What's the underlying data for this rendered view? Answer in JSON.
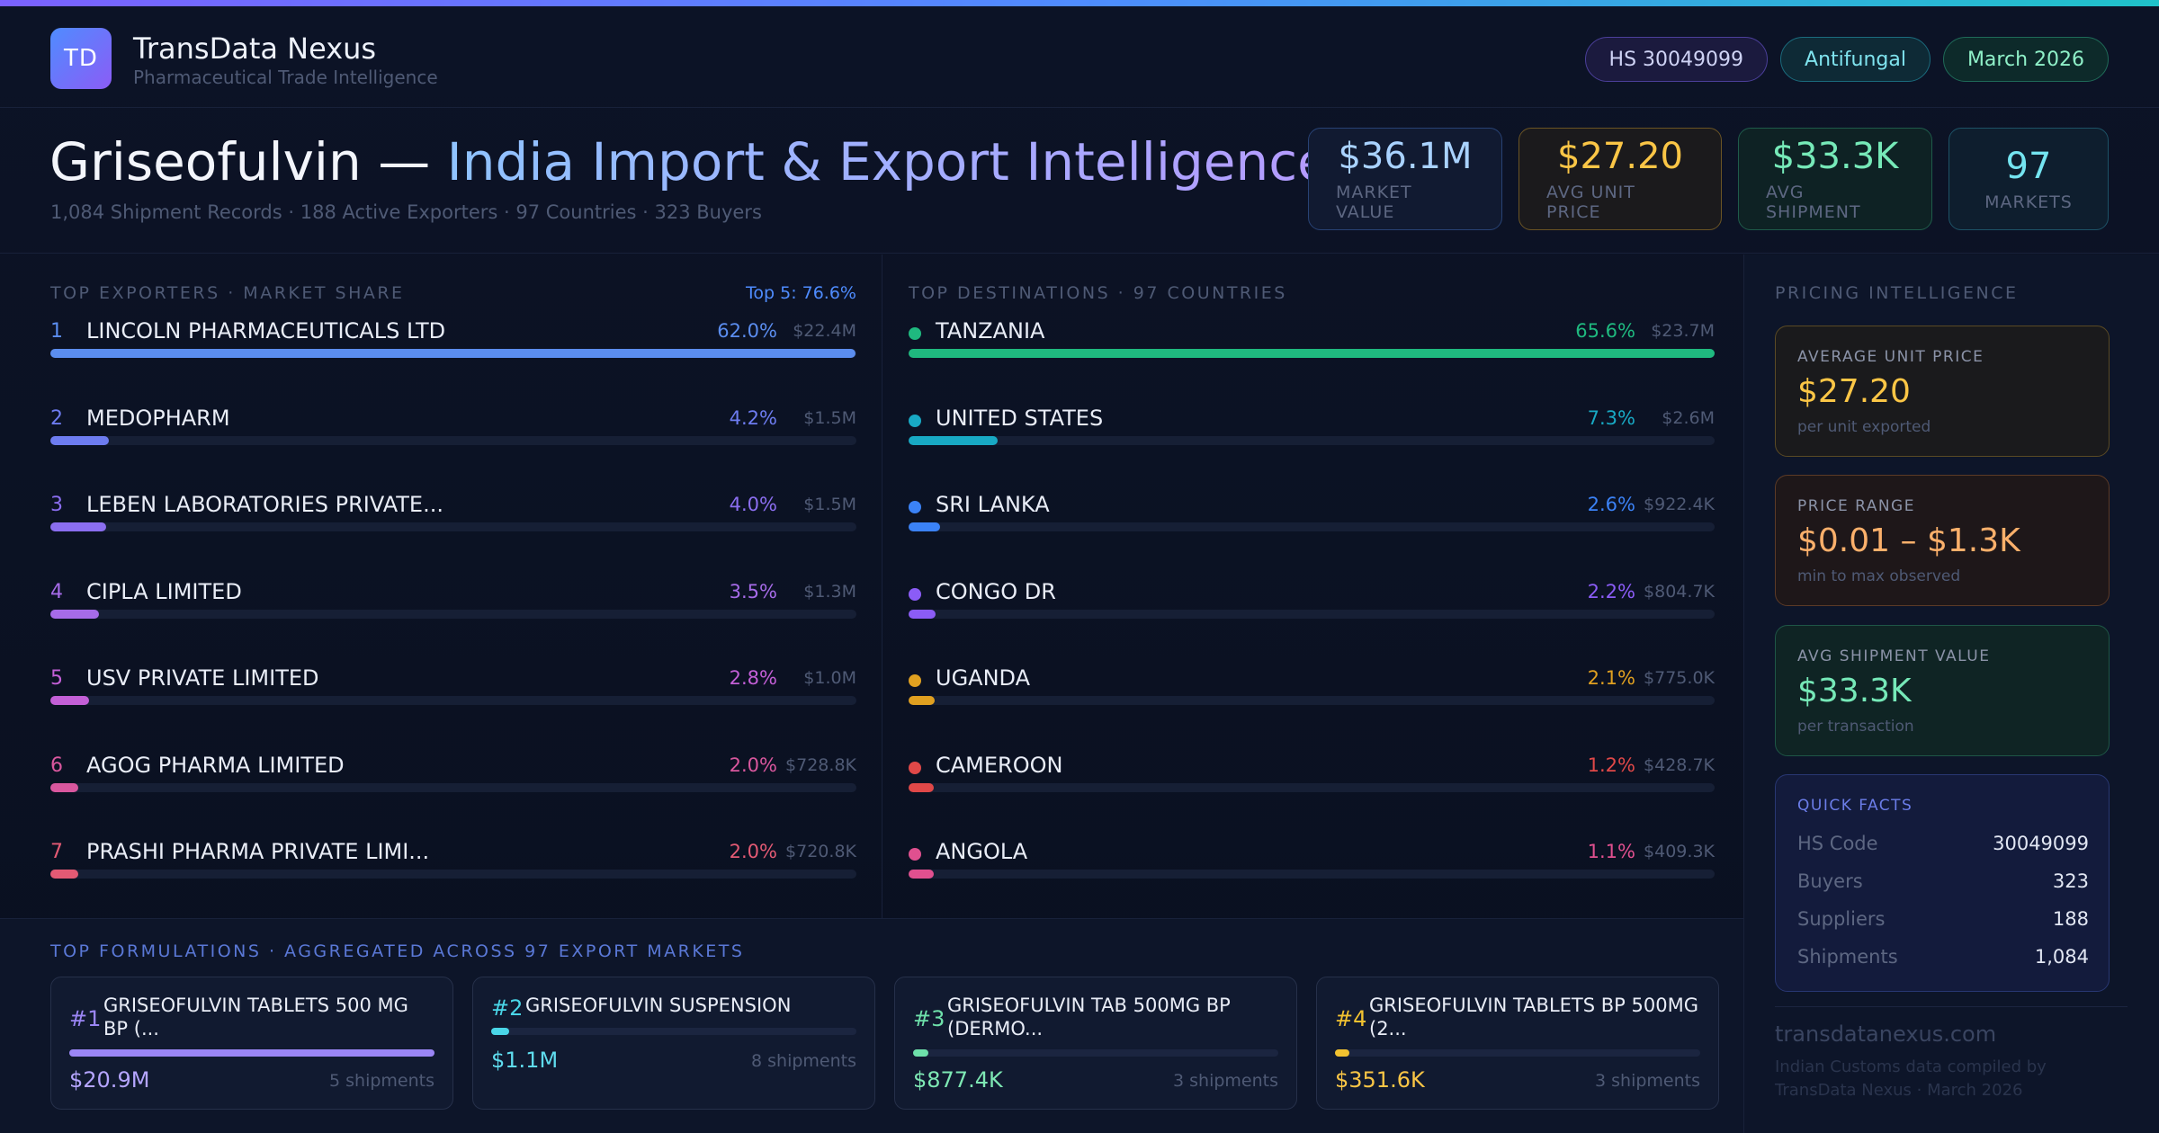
{
  "brand": {
    "logo": "TD",
    "name": "TransData Nexus",
    "subtitle": "Pharmaceutical Trade Intelligence"
  },
  "chips": {
    "hs": "HS 30049099",
    "category": "Antifungal",
    "date": "March 2026"
  },
  "hero": {
    "title_product": "Griseofulvin —",
    "title_rest": "India Import & Export Intelligence",
    "subtitle": "1,084 Shipment Records · 188 Active Exporters · 97 Countries · 323 Buyers"
  },
  "stats": [
    {
      "value": "$36.1M",
      "label": "MARKET VALUE"
    },
    {
      "value": "$27.20",
      "label": "AVG UNIT PRICE"
    },
    {
      "value": "$33.3K",
      "label": "AVG SHIPMENT"
    },
    {
      "value": "97",
      "label": "MARKETS"
    }
  ],
  "exporters": {
    "title": "TOP EXPORTERS · MARKET SHARE",
    "top5": "Top 5: 76.6%",
    "items": [
      {
        "rank": "1",
        "name": "LINCOLN PHARMACEUTICALS LTD",
        "pct": "62.0%",
        "amount": "$22.4M",
        "share": 62.0,
        "color": "#5b8def"
      },
      {
        "rank": "2",
        "name": "MEDOPHARM",
        "pct": "4.2%",
        "amount": "$1.5M",
        "share": 4.2,
        "color": "#6d7cf0"
      },
      {
        "rank": "3",
        "name": "LEBEN LABORATORIES PRIVATE...",
        "pct": "4.0%",
        "amount": "$1.5M",
        "share": 4.0,
        "color": "#8b6ef0"
      },
      {
        "rank": "4",
        "name": "CIPLA LIMITED",
        "pct": "3.5%",
        "amount": "$1.3M",
        "share": 3.5,
        "color": "#a66be8"
      },
      {
        "rank": "5",
        "name": "USV PRIVATE LIMITED",
        "pct": "2.8%",
        "amount": "$1.0M",
        "share": 2.8,
        "color": "#c35fd6"
      },
      {
        "rank": "6",
        "name": "AGOG PHARMA LIMITED",
        "pct": "2.0%",
        "amount": "$728.8K",
        "share": 2.0,
        "color": "#d9579e"
      },
      {
        "rank": "7",
        "name": "PRASHI PHARMA PRIVATE LIMI...",
        "pct": "2.0%",
        "amount": "$720.8K",
        "share": 2.0,
        "color": "#e35a74"
      }
    ]
  },
  "destinations": {
    "title": "TOP DESTINATIONS · 97 COUNTRIES",
    "items": [
      {
        "name": "TANZANIA",
        "pct": "65.6%",
        "amount": "$23.7M",
        "share": 65.6,
        "color": "#1fb97f"
      },
      {
        "name": "UNITED STATES",
        "pct": "7.3%",
        "amount": "$2.6M",
        "share": 7.3,
        "color": "#18a9c4"
      },
      {
        "name": "SRI LANKA",
        "pct": "2.6%",
        "amount": "$922.4K",
        "share": 2.6,
        "color": "#3b82f6"
      },
      {
        "name": "CONGO DR",
        "pct": "2.2%",
        "amount": "$804.7K",
        "share": 2.2,
        "color": "#8b5cf6"
      },
      {
        "name": "UGANDA",
        "pct": "2.1%",
        "amount": "$775.0K",
        "share": 2.1,
        "color": "#e0a020"
      },
      {
        "name": "CAMEROON",
        "pct": "1.2%",
        "amount": "$428.7K",
        "share": 1.2,
        "color": "#e04848"
      },
      {
        "name": "ANGOLA",
        "pct": "1.1%",
        "amount": "$409.3K",
        "share": 1.1,
        "color": "#e0508f"
      }
    ]
  },
  "formulations": {
    "title": "TOP FORMULATIONS · AGGREGATED ACROSS 97 EXPORT MARKETS",
    "items": [
      {
        "rank": "#1",
        "name": "GRISEOFULVIN TABLETS 500 MG BP (...",
        "value": "$20.9M",
        "shipments": "5 shipments",
        "share": 1.0,
        "color": "#9b86f5",
        "valcolor": "#b5a5ff"
      },
      {
        "rank": "#2",
        "name": "GRISEOFULVIN SUSPENSION",
        "value": "$1.1M",
        "shipments": "8 shipments",
        "share": 0.05,
        "color": "#4ad6e8",
        "valcolor": "#5fdcee"
      },
      {
        "rank": "#3",
        "name": "GRISEOFULVIN TAB 500MG BP (DERMO...",
        "value": "$877.4K",
        "shipments": "3 shipments",
        "share": 0.042,
        "color": "#6ee0aa",
        "valcolor": "#7ee8b4"
      },
      {
        "rank": "#4",
        "name": "GRISEOFULVIN TABLETS BP 500MG (2...",
        "value": "$351.6K",
        "shipments": "3 shipments",
        "share": 0.017,
        "color": "#f2c230",
        "valcolor": "#fbc646"
      }
    ]
  },
  "pricing": {
    "title": "PRICING INTELLIGENCE",
    "avg_unit": {
      "label": "AVERAGE UNIT PRICE",
      "value": "$27.20",
      "sub": "per unit exported"
    },
    "range": {
      "label": "PRICE RANGE",
      "value": "$0.01 – $1.3K",
      "sub": "min to max observed"
    },
    "avg_ship": {
      "label": "AVG SHIPMENT VALUE",
      "value": "$33.3K",
      "sub": "per transaction"
    },
    "facts": {
      "title": "QUICK FACTS",
      "rows": [
        {
          "k": "HS Code",
          "v": "30049099"
        },
        {
          "k": "Buyers",
          "v": "323"
        },
        {
          "k": "Suppliers",
          "v": "188"
        },
        {
          "k": "Shipments",
          "v": "1,084"
        }
      ]
    },
    "site": "transdatanexus.com",
    "credit": "Indian Customs data compiled by TransData Nexus · March 2026"
  }
}
